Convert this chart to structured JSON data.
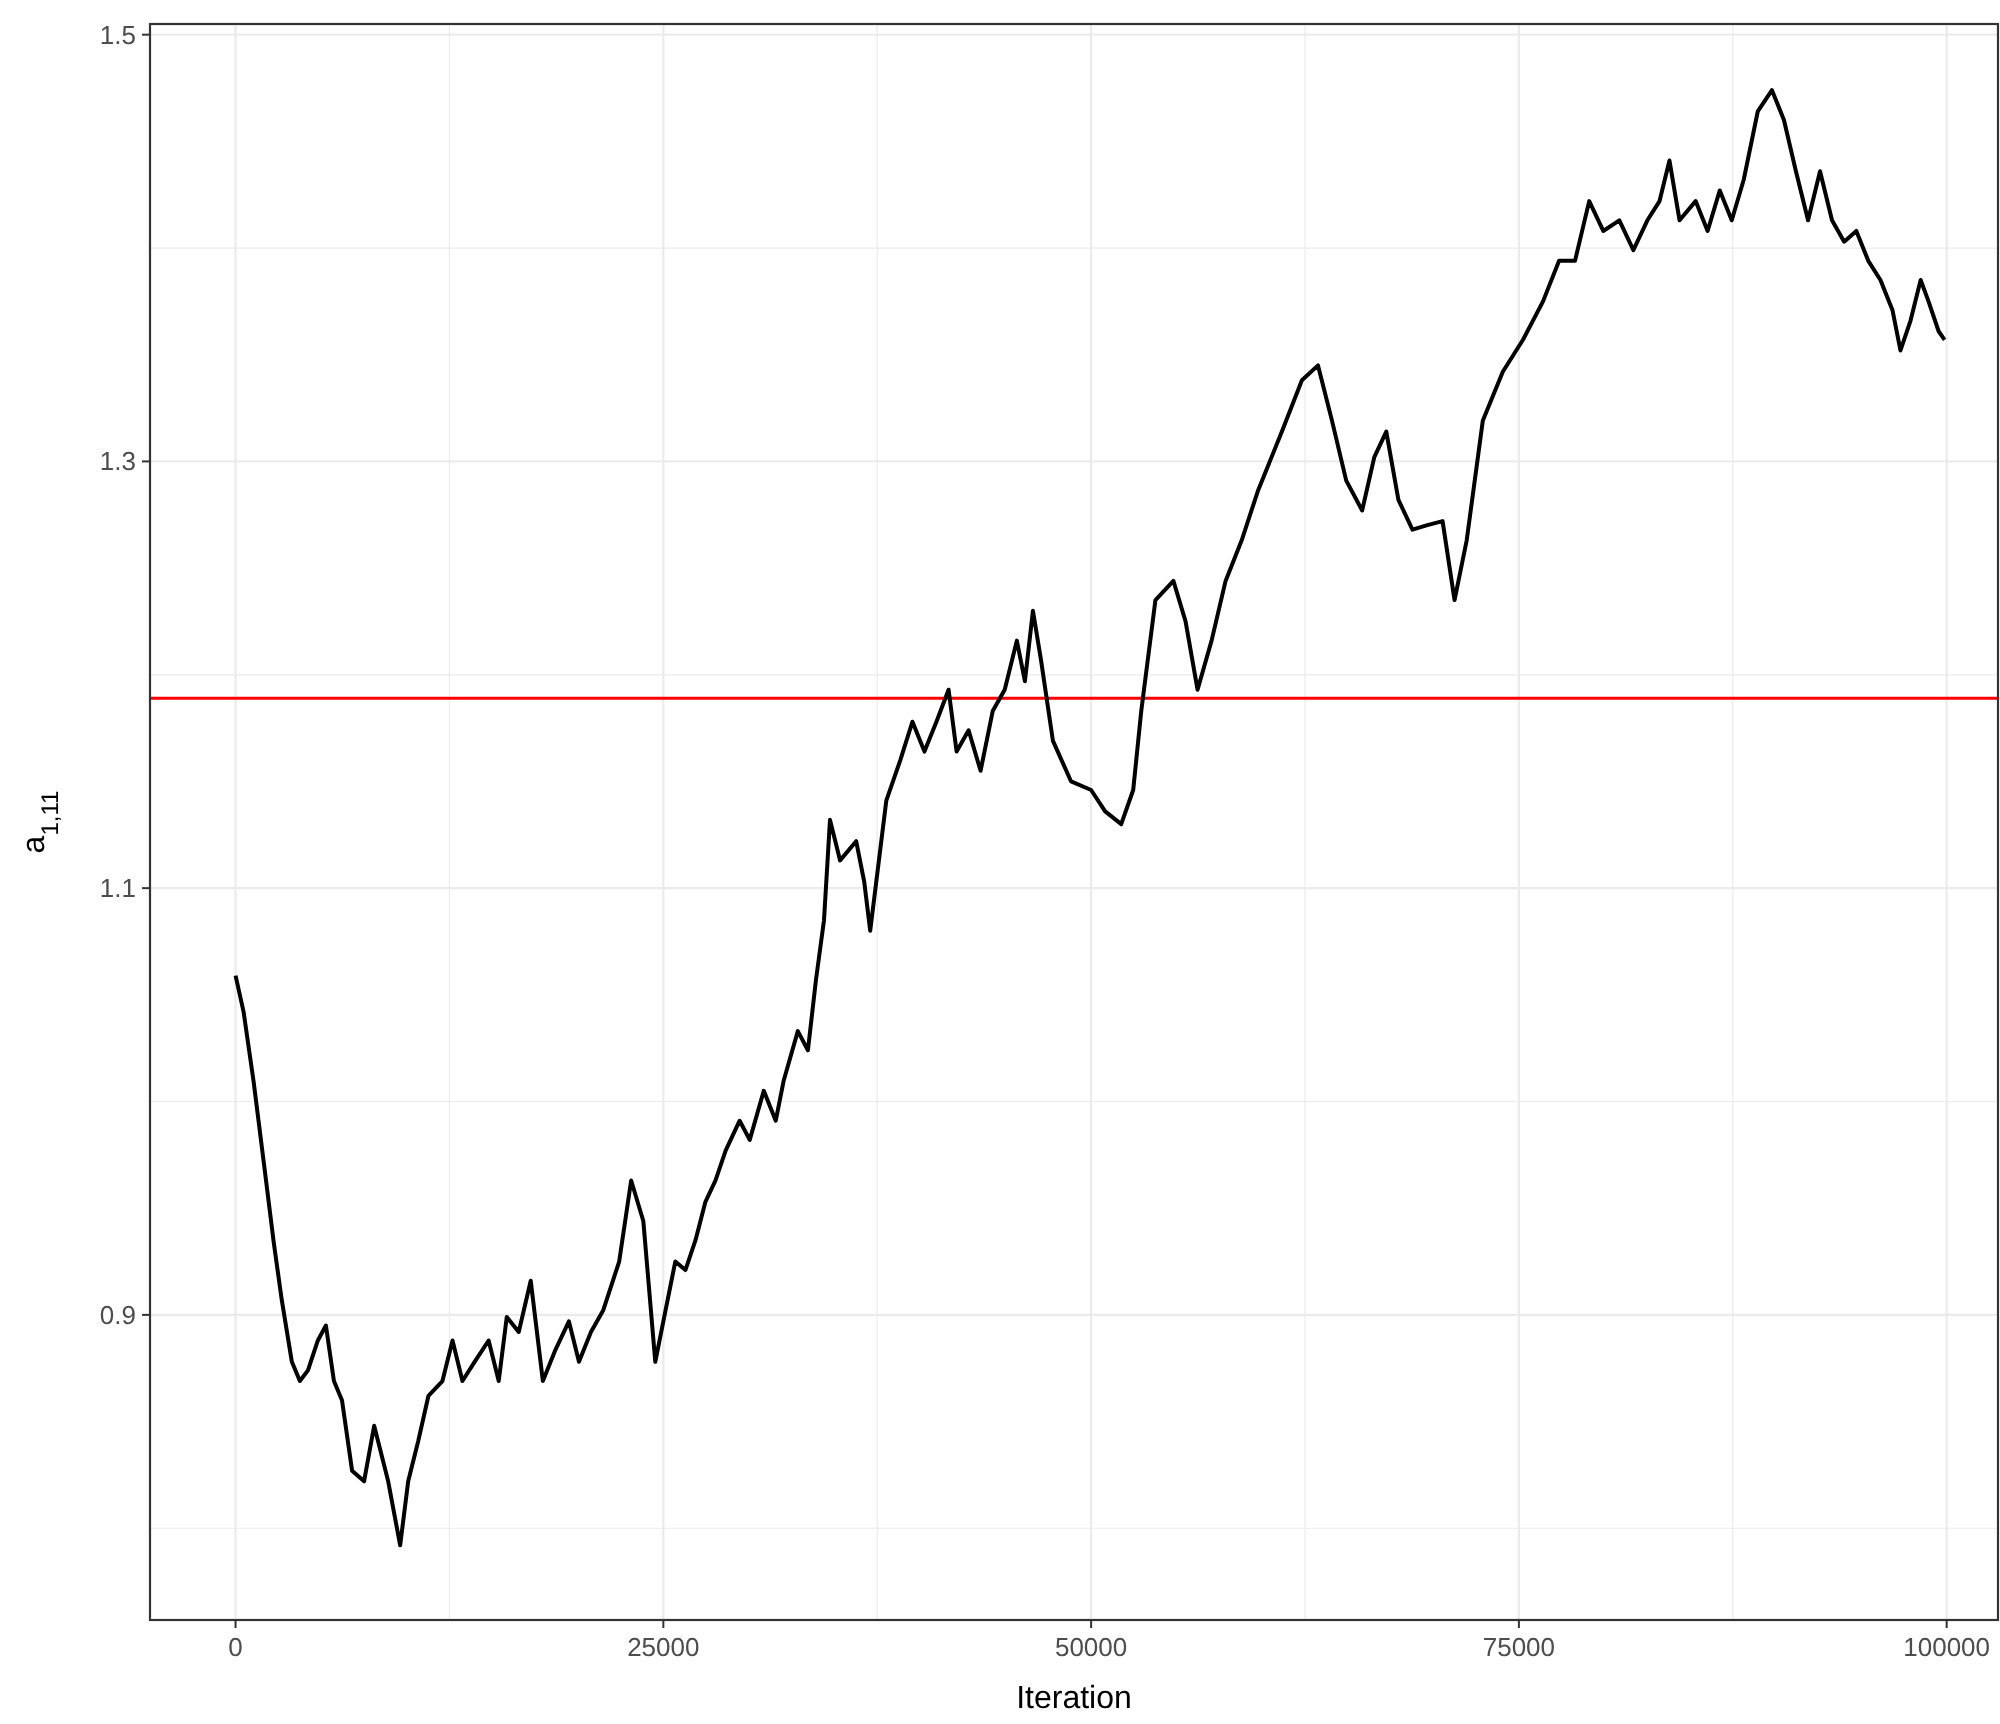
{
  "chart_data": {
    "type": "line",
    "xlabel": "Iteration",
    "ylabel": "a$_{1,11}$",
    "xlim": [
      -5000,
      103000
    ],
    "ylim": [
      0.757,
      1.505
    ],
    "xticks": [
      0,
      {
        "value": 12500,
        "label": null
      },
      25000,
      {
        "value": 37500,
        "label": null
      },
      50000,
      {
        "value": 62500,
        "label": null
      },
      75000,
      {
        "value": 87500,
        "label": null
      },
      100000
    ],
    "yticks": [
      {
        "value": 0.8,
        "label": null
      },
      0.9,
      {
        "value": 1.0,
        "label": null
      },
      1.1,
      {
        "value": 1.2,
        "label": null
      },
      1.3,
      {
        "value": 1.4,
        "label": null
      },
      1.5
    ],
    "grid": true,
    "ref_lines": [
      {
        "axis": "y",
        "value": 1.189,
        "color": "#ff0000"
      }
    ],
    "series": [
      {
        "color": "#000000",
        "x": [
          0,
          470,
          1060,
          1640,
          2230,
          2700,
          3290,
          3760,
          4230,
          4810,
          5280,
          5750,
          6220,
          6810,
          7510,
          8100,
          8920,
          9620,
          10090,
          10680,
          11270,
          12090,
          12680,
          13260,
          13970,
          14790,
          15380,
          15850,
          16550,
          17250,
          17960,
          18660,
          19480,
          20070,
          20770,
          21480,
          22420,
          23120,
          23830,
          24530,
          25000,
          25700,
          26290,
          26880,
          27460,
          28050,
          28640,
          29460,
          30050,
          30870,
          31570,
          32040,
          32860,
          33450,
          33920,
          34390,
          34740,
          35330,
          36270,
          36740,
          37090,
          38030,
          38850,
          39560,
          40260,
          40960,
          41670,
          42140,
          42840,
          43540,
          44250,
          44950,
          45660,
          46130,
          46600,
          47070,
          47770,
          48830,
          50000,
          50820,
          51760,
          52460,
          52930,
          53760,
          54810,
          55520,
          56220,
          57040,
          57860,
          58800,
          59740,
          61150,
          62320,
          63260,
          64080,
          64910,
          65840,
          66550,
          67250,
          67960,
          68780,
          69600,
          70540,
          71240,
          71950,
          72890,
          74060,
          75240,
          76410,
          77350,
          78280,
          79110,
          79930,
          80870,
          81690,
          82510,
          83220,
          83800,
          84390,
          85330,
          86030,
          86740,
          87440,
          88140,
          88960,
          89790,
          90490,
          91190,
          91900,
          92600,
          93300,
          94010,
          94720,
          95420,
          96130,
          96830,
          97300,
          97890,
          98480,
          98940,
          99530,
          99880
        ],
        "values": [
          1.059,
          1.042,
          1.009,
          0.972,
          0.934,
          0.907,
          0.878,
          0.869,
          0.874,
          0.888,
          0.895,
          0.869,
          0.86,
          0.827,
          0.822,
          0.848,
          0.822,
          0.792,
          0.822,
          0.841,
          0.862,
          0.869,
          0.888,
          0.869,
          0.878,
          0.888,
          0.869,
          0.899,
          0.892,
          0.916,
          0.869,
          0.883,
          0.897,
          0.878,
          0.892,
          0.902,
          0.925,
          0.963,
          0.944,
          0.878,
          0.897,
          0.925,
          0.921,
          0.935,
          0.953,
          0.963,
          0.977,
          0.991,
          0.982,
          1.005,
          0.991,
          1.01,
          1.033,
          1.024,
          1.057,
          1.085,
          1.132,
          1.113,
          1.122,
          1.103,
          1.08,
          1.141,
          1.16,
          1.178,
          1.164,
          1.178,
          1.193,
          1.164,
          1.174,
          1.155,
          1.183,
          1.193,
          1.216,
          1.197,
          1.23,
          1.207,
          1.169,
          1.15,
          1.146,
          1.136,
          1.13,
          1.146,
          1.183,
          1.235,
          1.244,
          1.225,
          1.193,
          1.216,
          1.244,
          1.263,
          1.286,
          1.314,
          1.338,
          1.345,
          1.319,
          1.291,
          1.277,
          1.302,
          1.314,
          1.282,
          1.268,
          1.27,
          1.272,
          1.235,
          1.263,
          1.319,
          1.342,
          1.357,
          1.375,
          1.394,
          1.394,
          1.422,
          1.408,
          1.413,
          1.399,
          1.413,
          1.422,
          1.441,
          1.413,
          1.422,
          1.408,
          1.427,
          1.413,
          1.432,
          1.464,
          1.474,
          1.46,
          1.436,
          1.413,
          1.436,
          1.413,
          1.403,
          1.408,
          1.394,
          1.385,
          1.371,
          1.352,
          1.366,
          1.385,
          1.375,
          1.361,
          1.357
        ]
      }
    ]
  }
}
